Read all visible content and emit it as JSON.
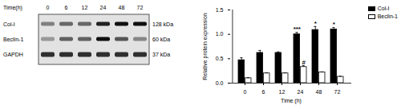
{
  "chart_data": {
    "type": "bar",
    "categories": [
      "0",
      "6",
      "12",
      "24",
      "48",
      "72"
    ],
    "series": [
      {
        "name": "Col-I",
        "color": "#000000",
        "values": [
          0.47,
          0.62,
          0.62,
          1.0,
          1.09,
          1.1
        ],
        "errors": [
          0.05,
          0.05,
          0.02,
          0.04,
          0.07,
          0.04
        ]
      },
      {
        "name": "Beclin-1",
        "color": "#ffffff",
        "values": [
          0.1,
          0.2,
          0.2,
          0.33,
          0.22,
          0.13
        ],
        "errors": [
          0.01,
          0.01,
          0.01,
          0.03,
          0.01,
          0.01
        ]
      }
    ],
    "x_label": "Time (h)",
    "y_label": "Relative protein expression",
    "ylim": [
      0,
      1.5
    ],
    "yticks": [
      {
        "value": 0,
        "label": "0.0"
      },
      {
        "value": 0.5,
        "label": "0.5"
      },
      {
        "value": 1,
        "label": "1.0"
      },
      {
        "value": 1.5,
        "label": "1.5"
      }
    ],
    "legend": "top-right",
    "annotations": [
      {
        "series": "Col-I",
        "category": "24",
        "text": "***"
      },
      {
        "series": "Col-I",
        "category": "48",
        "text": "*"
      },
      {
        "series": "Col-I",
        "category": "72",
        "text": "*"
      },
      {
        "series": "Beclin-1",
        "category": "24",
        "text": "#"
      }
    ]
  },
  "blot": {
    "header": "Time(h)",
    "lanes": [
      "0",
      "6",
      "12",
      "24",
      "48",
      "72"
    ],
    "rows": [
      {
        "label": "Col-I",
        "size": "128 kDa"
      },
      {
        "label": "Beclin-1",
        "size": "60 kDa"
      },
      {
        "label": "GAPDH",
        "size": "37 kDa"
      }
    ]
  }
}
